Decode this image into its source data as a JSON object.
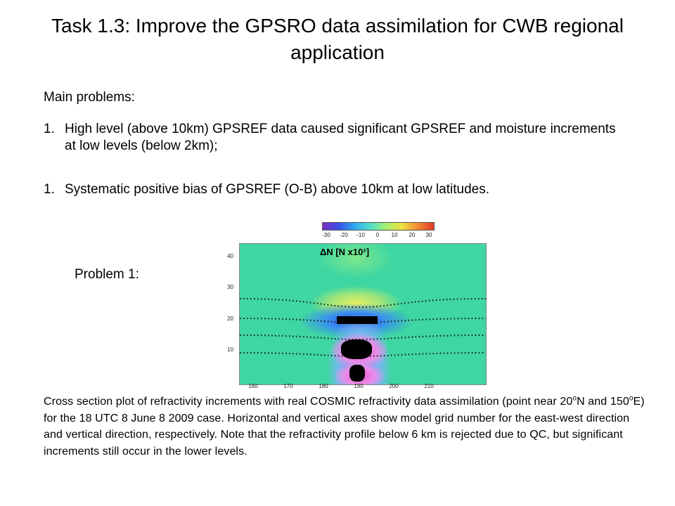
{
  "title": "Task 1.3: Improve the GPSRO data assimilation for CWB regional application",
  "main_problems_label": "Main problems:",
  "problems": [
    {
      "num": "1.",
      "text": "High level (above 10km) GPSREF data caused significant GPSREF and moisture increments at low levels (below 2km);"
    },
    {
      "num": "1.",
      "text": "Systematic positive bias of GPSREF (O-B) above 10km at low latitudes."
    }
  ],
  "problem1_label": "Problem 1:",
  "figure": {
    "panel_label": "ΔN [N x10¹]",
    "colorbar_ticks": [
      "-30",
      "-20",
      "-10",
      "0",
      "10",
      "20",
      "30"
    ],
    "y_ticks": [
      "40",
      "30",
      "20",
      "10"
    ],
    "x_ticks": [
      "160",
      "170",
      "180",
      "190",
      "200",
      "210"
    ]
  },
  "caption": {
    "part1": "Cross section plot of refractivity increments with real COSMIC refractivity data assimilation (point near 20",
    "sup1": "o",
    "part2": "N and 150",
    "sup2": "o",
    "part3": "E) for the 18 UTC 8 June 8 2009 case.  Horizontal and vertical axes show model grid number for the east-west direction and vertical direction, respectively. Note that the refractivity profile below 6 km is rejected due to QC, but significant increments still occur in the lower levels."
  }
}
